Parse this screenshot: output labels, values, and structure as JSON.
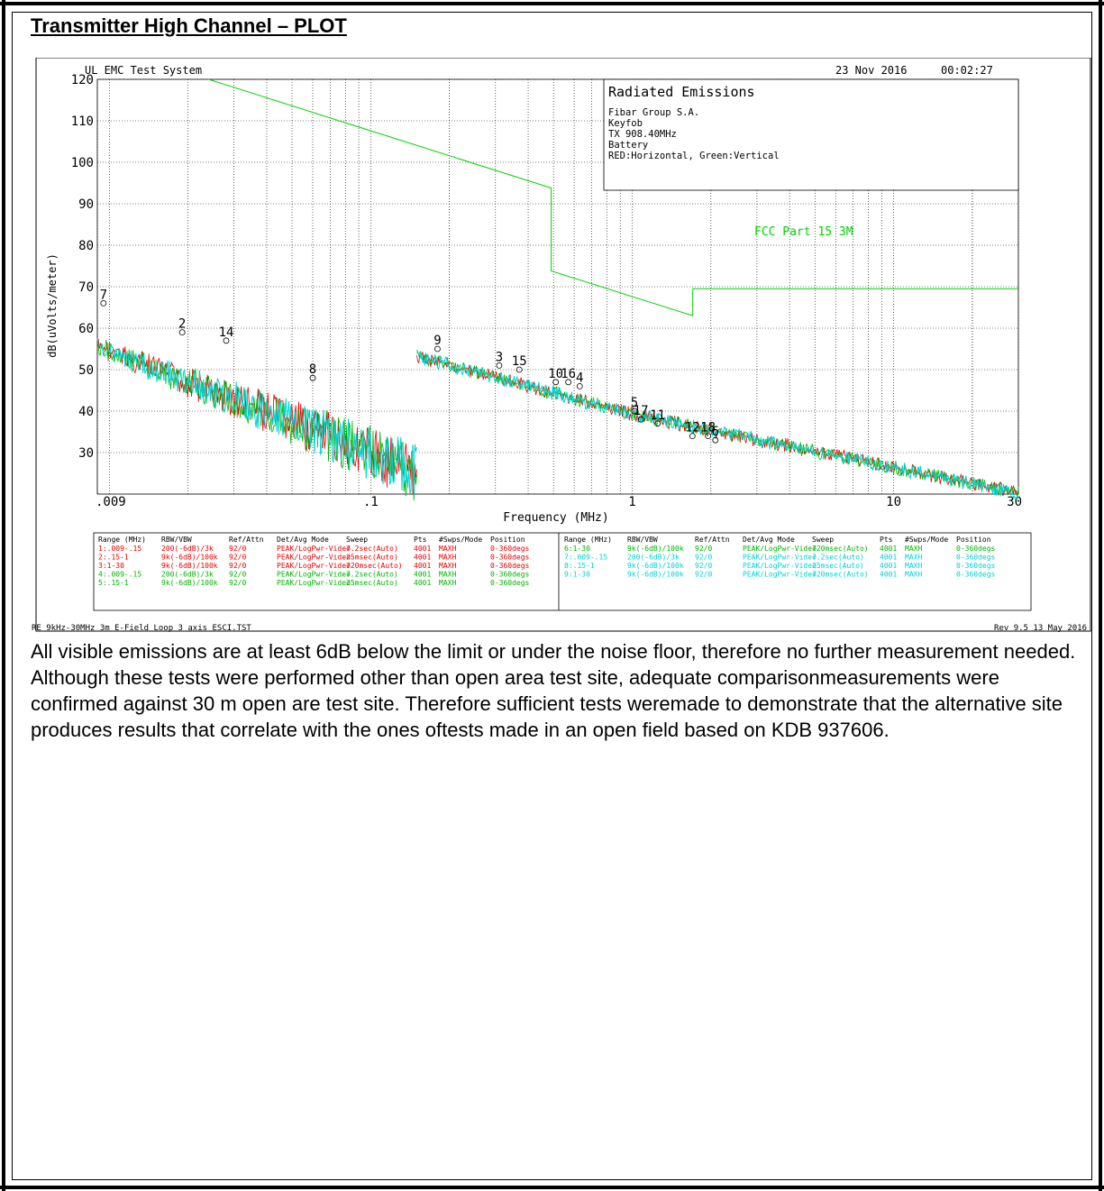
{
  "heading": "Transmitter High Channel – PLOT",
  "plot_header": {
    "system": "UL EMC Test System",
    "date": "23 Nov 2016",
    "time": "00:02:27"
  },
  "info_box": {
    "title": "Radiated Emissions",
    "lines": [
      "Fibar Group S.A.",
      "Keyfob",
      "TX 908.40MHz",
      "Battery",
      "RED:Horizontal, Green:Vertical"
    ]
  },
  "limit_label": "FCC Part 15 3M",
  "footer_left": "RE 9kHz-30MHz 3m E-Field Loop 3 axis ESCI.TST",
  "footer_right": "Rev 9.5 13 May 2016",
  "settings_table": {
    "headers": [
      "Range (MHz)",
      "RBW/VBW",
      "Ref/Attn",
      "Det/Avg Mode",
      "Sweep",
      "Pts",
      "#Swps/Mode",
      "Position"
    ],
    "left_rows": [
      {
        "color": "#e60000",
        "cells": [
          "1:.009-.15",
          "200(-6dB)/3k",
          "92/0",
          "PEAK/LogPwr-Video",
          "7.2sec(Auto)",
          "4001",
          "MAXH",
          "0-360degs"
        ]
      },
      {
        "color": "#e60000",
        "cells": [
          "2:.15-1",
          "9k(-6dB)/100k",
          "92/0",
          "PEAK/LogPwr-Video",
          "25msec(Auto)",
          "4001",
          "MAXH",
          "0-360degs"
        ]
      },
      {
        "color": "#e60000",
        "cells": [
          "3:1-30",
          "9k(-6dB)/100k",
          "92/0",
          "PEAK/LogPwr-Video",
          "720msec(Auto)",
          "4001",
          "MAXH",
          "0-360degs"
        ]
      },
      {
        "color": "#00b400",
        "cells": [
          "4:.009-.15",
          "200(-6dB)/3k",
          "92/0",
          "PEAK/LogPwr-Video",
          "7.2sec(Auto)",
          "4001",
          "MAXH",
          "0-360degs"
        ]
      },
      {
        "color": "#00b400",
        "cells": [
          "5:.15-1",
          "9k(-6dB)/100k",
          "92/0",
          "PEAK/LogPwr-Video",
          "25msec(Auto)",
          "4001",
          "MAXH",
          "0-360degs"
        ]
      }
    ],
    "right_rows": [
      {
        "color": "#00b400",
        "cells": [
          "6:1-30",
          "9k(-6dB)/100k",
          "92/0",
          "PEAK/LogPwr-Video",
          "720msec(Auto)",
          "4001",
          "MAXH",
          "0-360degs"
        ]
      },
      {
        "color": "#00d2d2",
        "cells": [
          "7:.009-.15",
          "200(-6dB)/3k",
          "92/0",
          "PEAK/LogPwr-Video",
          "7.2sec(Auto)",
          "4001",
          "MAXH",
          "0-360degs"
        ]
      },
      {
        "color": "#00d2d2",
        "cells": [
          "8:.15-1",
          "9k(-6dB)/100k",
          "92/0",
          "PEAK/LogPwr-Video",
          "25msec(Auto)",
          "4001",
          "MAXH",
          "0-360degs"
        ]
      },
      {
        "color": "#00d2d2",
        "cells": [
          "9:1-30",
          "9k(-6dB)/100k",
          "92/0",
          "PEAK/LogPwr-Video",
          "720msec(Auto)",
          "4001",
          "MAXH",
          "0-360degs"
        ]
      }
    ]
  },
  "paragraphs": [
    "All visible emissions are at least 6dB below the limit or under the noise floor, therefore no further measurement needed.",
    "Although these tests were performed other than open area test site, adequate comparisonmeasurements were confirmed against 30 m open are test site. Therefore sufficient tests weremade to demonstrate that the alternative site produces results that correlate with the ones oftests made in an open field based on KDB 937606."
  ],
  "chart_data": {
    "type": "line",
    "title": "Radiated Emissions",
    "xlabel": "Frequency (MHz)",
    "ylabel": "dB(uVolts/meter)",
    "x_scale": "log",
    "xlim": [
      0.009,
      30
    ],
    "ylim": [
      20,
      120
    ],
    "grid": true,
    "x_tick_labels": [
      ".009",
      ".1",
      "1",
      "10",
      "30"
    ],
    "y_ticks": [
      30,
      40,
      50,
      60,
      70,
      80,
      90,
      100,
      110,
      120
    ],
    "series_colors": {
      "horizontal": "#e60000",
      "vertical": "#00b400",
      "peak": "#00d2d2",
      "limit": "#00d200"
    },
    "limit_line": {
      "name": "FCC Part 15 3M",
      "x": [
        0.009,
        0.49,
        0.49,
        1.705,
        1.705,
        30
      ],
      "y": [
        128.5,
        93.8,
        73.8,
        63,
        69.5,
        69.5
      ]
    },
    "emission_segments": [
      {
        "x": [
          0.009,
          0.15
        ],
        "y_start": 57,
        "y_end": 32
      },
      {
        "x": [
          0.15,
          1
        ],
        "y_start": 54,
        "y_end": 40
      },
      {
        "x": [
          1,
          30
        ],
        "y_start": 40,
        "y_end": 21
      }
    ],
    "markers": [
      {
        "label": "7",
        "x": 0.0095,
        "y": 66
      },
      {
        "label": "2",
        "x": 0.019,
        "y": 59
      },
      {
        "label": "14",
        "x": 0.028,
        "y": 57
      },
      {
        "label": "8",
        "x": 0.06,
        "y": 48
      },
      {
        "label": "9",
        "x": 0.18,
        "y": 55
      },
      {
        "label": "3",
        "x": 0.31,
        "y": 51
      },
      {
        "label": "15",
        "x": 0.37,
        "y": 50
      },
      {
        "label": "10",
        "x": 0.51,
        "y": 47
      },
      {
        "label": "16",
        "x": 0.57,
        "y": 47
      },
      {
        "label": "4",
        "x": 0.63,
        "y": 46
      },
      {
        "label": "5",
        "x": 1.02,
        "y": 40
      },
      {
        "label": "17",
        "x": 1.08,
        "y": 38
      },
      {
        "label": "11",
        "x": 1.25,
        "y": 37
      },
      {
        "label": "12",
        "x": 1.7,
        "y": 34
      },
      {
        "label": "18",
        "x": 1.95,
        "y": 34
      },
      {
        "label": "6",
        "x": 2.08,
        "y": 33
      }
    ]
  }
}
